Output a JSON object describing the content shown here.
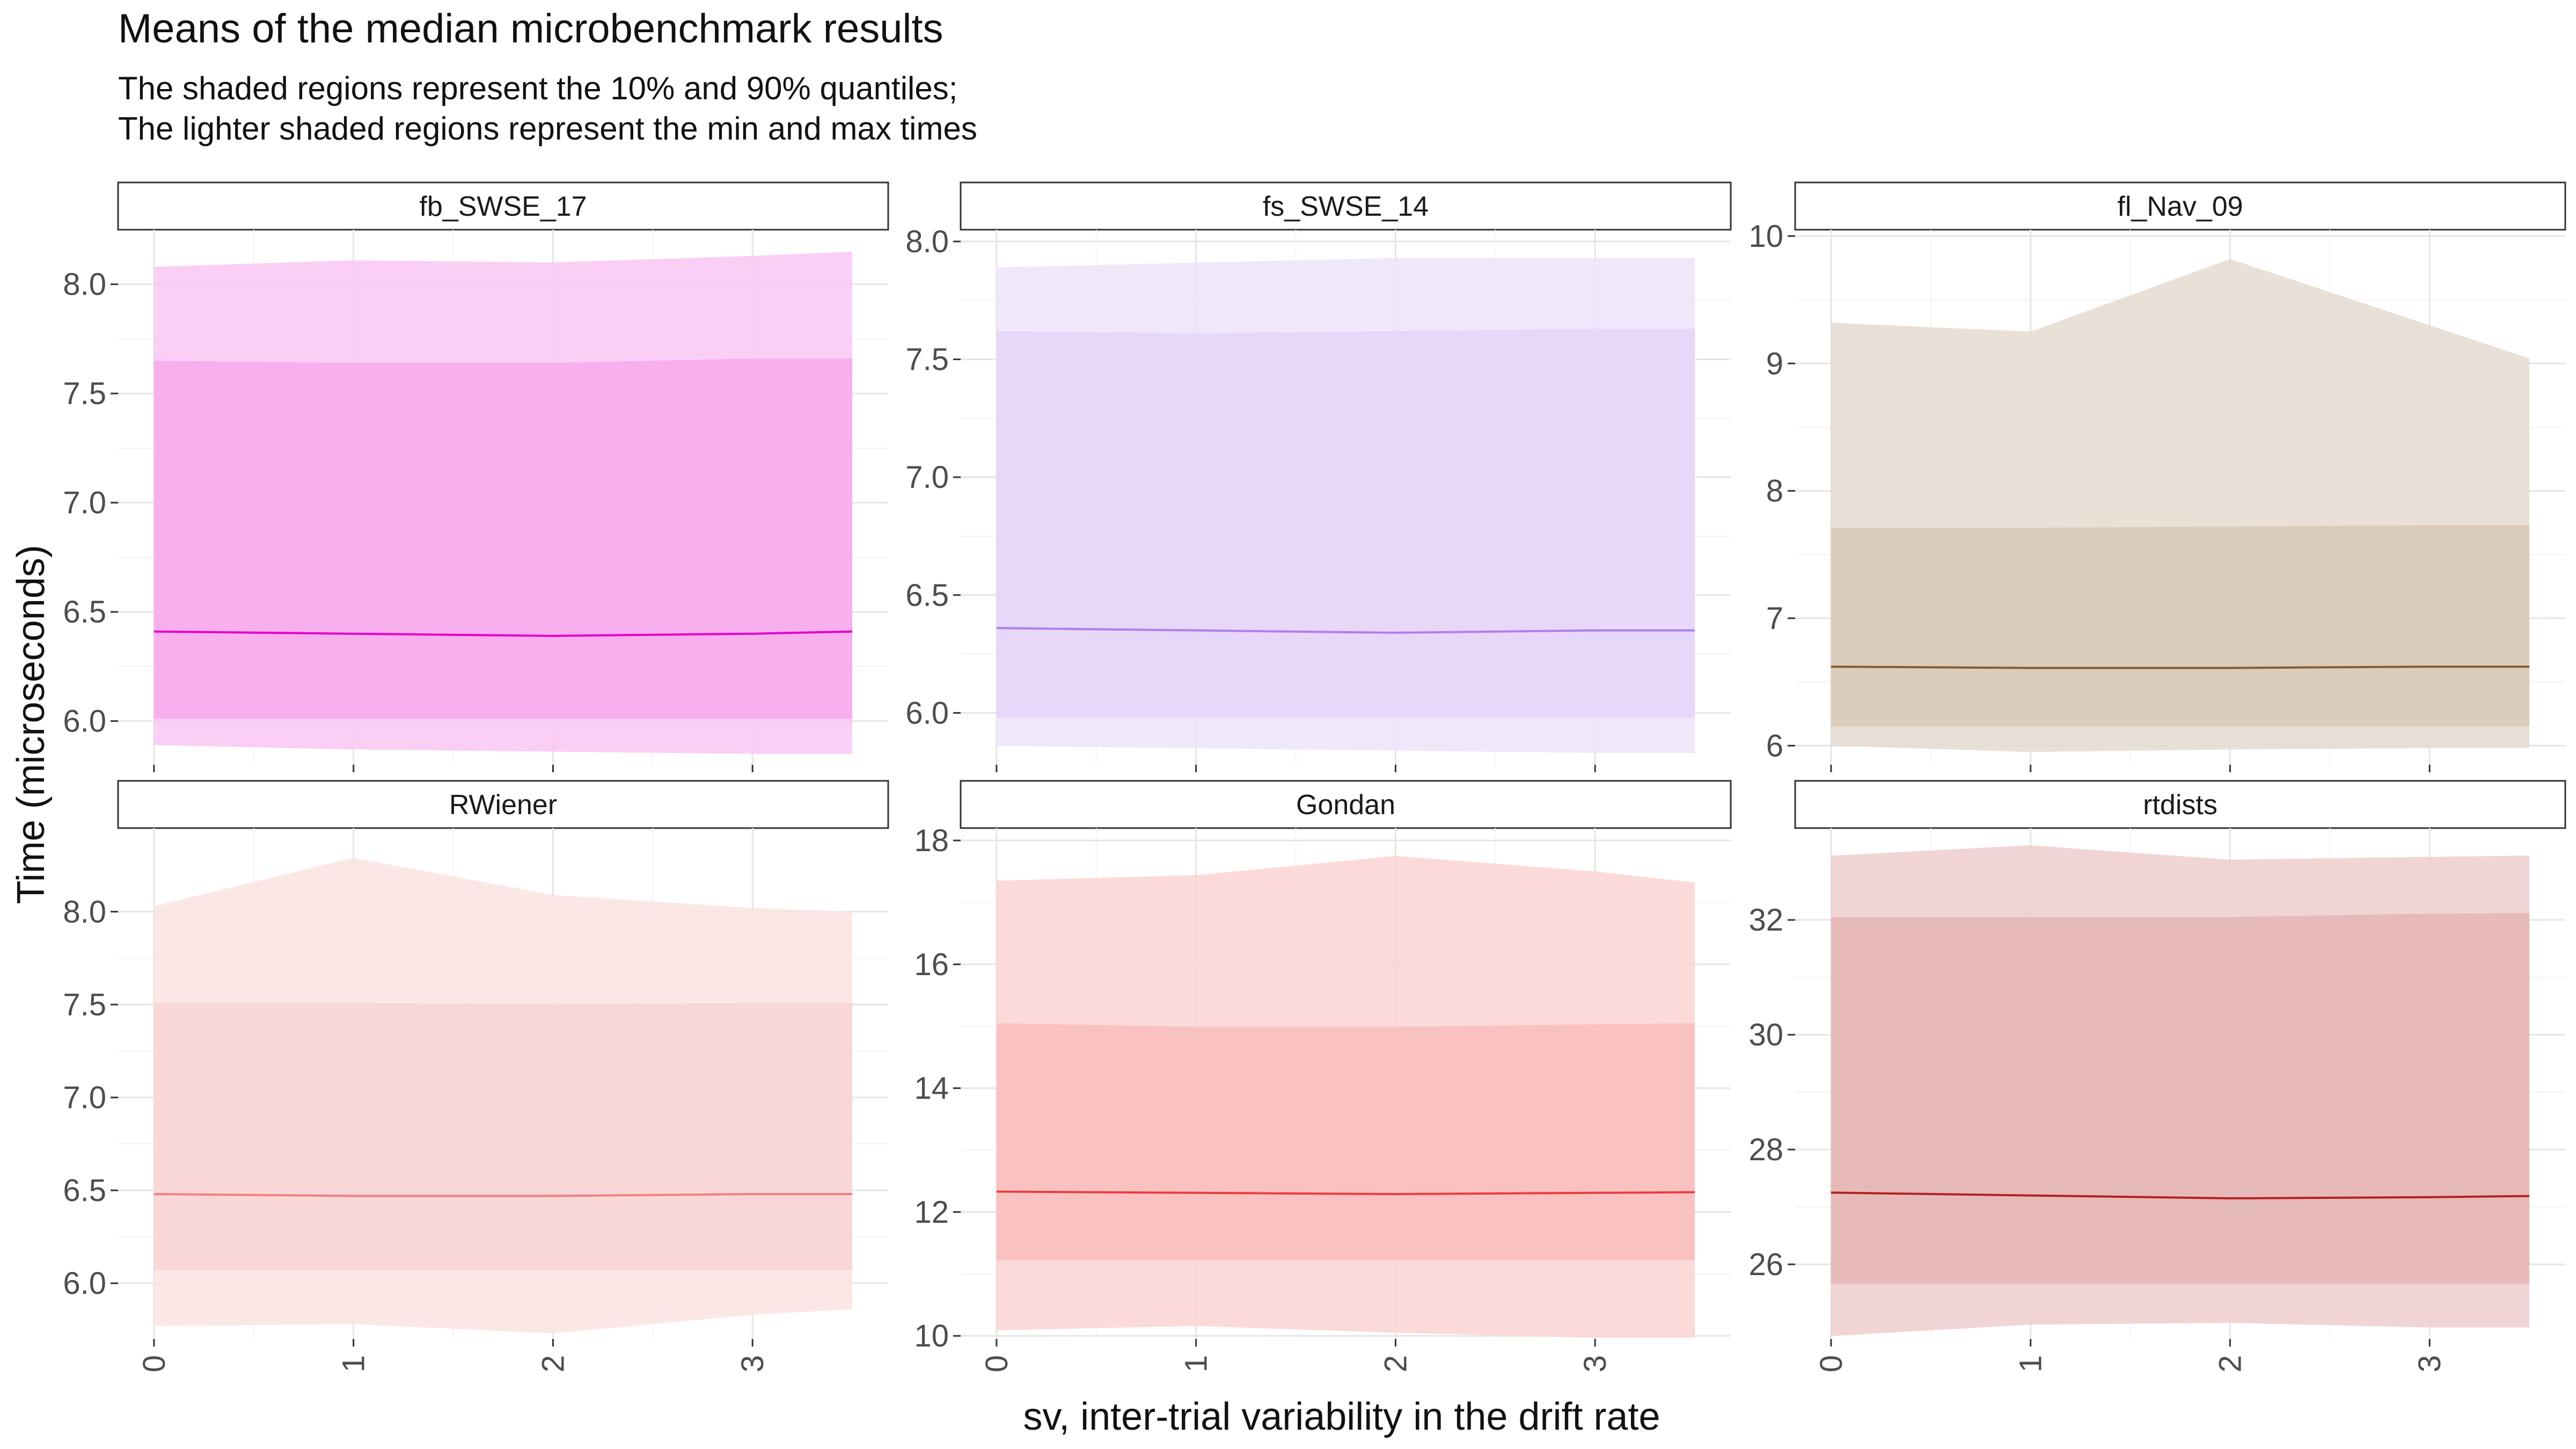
{
  "chart_data": {
    "type": "area",
    "title": "Means of the median microbenchmark results",
    "subtitle_lines": [
      "The shaded regions represent the 10% and 90% quantiles;",
      "The lighter shaded regions represent the min and max times"
    ],
    "xlabel": "sv, inter-trial variability in the drift rate",
    "ylabel": "Time (microseconds)",
    "x": [
      0,
      1,
      2,
      3,
      3.5
    ],
    "x_ticks": [
      0,
      1,
      2,
      3
    ],
    "grid": true,
    "panels": [
      {
        "name": "fb_SWSE_17",
        "color": "#e600c8",
        "ylim": [
          5.8,
          8.25
        ],
        "y_ticks": [
          6.0,
          6.5,
          7.0,
          7.5,
          8.0
        ],
        "y_tick_labels": [
          "6.0",
          "6.5",
          "7.0",
          "7.5",
          "8.0"
        ],
        "mean": [
          6.41,
          6.4,
          6.39,
          6.4,
          6.41
        ],
        "q10": [
          6.01,
          6.01,
          6.01,
          6.01,
          6.01
        ],
        "q90": [
          7.65,
          7.64,
          7.64,
          7.66,
          7.66
        ],
        "min": [
          5.89,
          5.87,
          5.86,
          5.85,
          5.85
        ],
        "max": [
          8.08,
          8.11,
          8.1,
          8.13,
          8.15
        ]
      },
      {
        "name": "fs_SWSE_14",
        "color": "#b07ee8",
        "ylim": [
          5.78,
          8.05
        ],
        "y_ticks": [
          6.0,
          6.5,
          7.0,
          7.5,
          8.0
        ],
        "y_tick_labels": [
          "6.0",
          "6.5",
          "7.0",
          "7.5",
          "8.0"
        ],
        "mean": [
          6.36,
          6.35,
          6.34,
          6.35,
          6.35
        ],
        "q10": [
          5.98,
          5.98,
          5.98,
          5.98,
          5.98
        ],
        "q90": [
          7.62,
          7.61,
          7.62,
          7.63,
          7.63
        ],
        "min": [
          5.86,
          5.85,
          5.84,
          5.83,
          5.83
        ],
        "max": [
          7.89,
          7.91,
          7.93,
          7.93,
          7.93
        ]
      },
      {
        "name": "fl_Nav_09",
        "color": "#8b5a2b",
        "ylim": [
          5.85,
          10.05
        ],
        "y_ticks": [
          6,
          7,
          8,
          9,
          10
        ],
        "y_tick_labels": [
          "6",
          "7",
          "8",
          "9",
          "10"
        ],
        "mean": [
          6.62,
          6.61,
          6.61,
          6.62,
          6.62
        ],
        "q10": [
          6.15,
          6.15,
          6.15,
          6.15,
          6.15
        ],
        "q90": [
          7.71,
          7.71,
          7.72,
          7.73,
          7.73
        ],
        "min": [
          6.0,
          5.95,
          5.97,
          5.98,
          5.98
        ],
        "max": [
          9.32,
          9.25,
          9.82,
          9.3,
          9.04
        ]
      },
      {
        "name": "RWiener",
        "color": "#f08080",
        "ylim": [
          5.7,
          8.45
        ],
        "y_ticks": [
          6.0,
          6.5,
          7.0,
          7.5,
          8.0
        ],
        "y_tick_labels": [
          "6.0",
          "6.5",
          "7.0",
          "7.5",
          "8.0"
        ],
        "mean": [
          6.48,
          6.47,
          6.47,
          6.48,
          6.48
        ],
        "q10": [
          6.07,
          6.07,
          6.07,
          6.07,
          6.07
        ],
        "q90": [
          7.51,
          7.51,
          7.5,
          7.51,
          7.51
        ],
        "min": [
          5.77,
          5.78,
          5.73,
          5.83,
          5.86
        ],
        "max": [
          8.03,
          8.29,
          8.09,
          8.02,
          8.0
        ]
      },
      {
        "name": "Gondan",
        "color": "#ee3b3b",
        "ylim": [
          9.95,
          18.2
        ],
        "y_ticks": [
          10,
          12,
          14,
          16,
          18
        ],
        "y_tick_labels": [
          "10",
          "12",
          "14",
          "16",
          "18"
        ],
        "mean": [
          12.33,
          12.31,
          12.29,
          12.31,
          12.32
        ],
        "q10": [
          11.22,
          11.22,
          11.22,
          11.22,
          11.22
        ],
        "q90": [
          15.05,
          14.99,
          14.99,
          15.03,
          15.05
        ],
        "min": [
          10.09,
          10.16,
          10.05,
          9.97,
          9.97
        ],
        "max": [
          17.35,
          17.44,
          17.75,
          17.5,
          17.32
        ]
      },
      {
        "name": "rtdists",
        "color": "#b22222",
        "ylim": [
          24.7,
          33.6
        ],
        "y_ticks": [
          26,
          28,
          30,
          32
        ],
        "y_tick_labels": [
          "26",
          "28",
          "30",
          "32"
        ],
        "mean": [
          27.25,
          27.2,
          27.15,
          27.17,
          27.19
        ],
        "q10": [
          25.66,
          25.66,
          25.66,
          25.66,
          25.66
        ],
        "q90": [
          32.05,
          32.05,
          32.05,
          32.11,
          32.12
        ],
        "min": [
          24.75,
          24.95,
          24.98,
          24.9,
          24.9
        ],
        "max": [
          33.12,
          33.3,
          33.05,
          33.1,
          33.12
        ]
      }
    ]
  }
}
